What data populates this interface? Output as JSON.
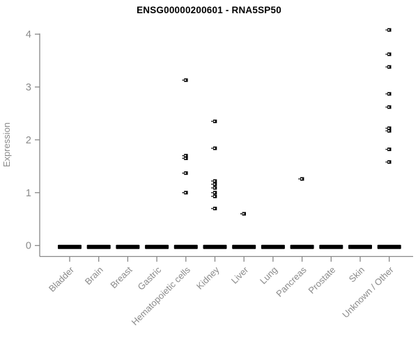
{
  "title": "ENSG00000200601 - RNA5SP50",
  "colors": {
    "background": "#ffffff",
    "title": "#000000",
    "axis_line": "#878787",
    "tick_label": "#8a8a8a",
    "axis_label": "#8a8a8a",
    "point": "#000000"
  },
  "chart_data": {
    "type": "scatter",
    "subtype": "strip-plot",
    "title": "ENSG00000200601 - RNA5SP50",
    "xlabel": "",
    "ylabel": "Expression",
    "ylim": [
      0,
      4
    ],
    "yticks": [
      0,
      1,
      2,
      3,
      4
    ],
    "grid": false,
    "legend": "none",
    "marker": "small-open-square",
    "categories": [
      "Bladder",
      "Brain",
      "Breast",
      "Gastric",
      "Hematopoietic cells",
      "Kidney",
      "Liver",
      "Lung",
      "Pancreas",
      "Prostate",
      "Skin",
      "Unknown / Other"
    ],
    "series": [
      {
        "name": "Bladder",
        "values_nonzero": [],
        "has_zero_cluster": true
      },
      {
        "name": "Brain",
        "values_nonzero": [],
        "has_zero_cluster": true
      },
      {
        "name": "Breast",
        "values_nonzero": [],
        "has_zero_cluster": true
      },
      {
        "name": "Gastric",
        "values_nonzero": [],
        "has_zero_cluster": true
      },
      {
        "name": "Hematopoietic cells",
        "values_nonzero": [
          3.13,
          1.7,
          1.65,
          1.37,
          1.0
        ],
        "has_zero_cluster": true
      },
      {
        "name": "Kidney",
        "values_nonzero": [
          2.35,
          1.84,
          1.22,
          1.16,
          1.09,
          1.0,
          0.93,
          0.7
        ],
        "has_zero_cluster": true
      },
      {
        "name": "Liver",
        "values_nonzero": [
          0.6
        ],
        "has_zero_cluster": true
      },
      {
        "name": "Lung",
        "values_nonzero": [],
        "has_zero_cluster": true
      },
      {
        "name": "Pancreas",
        "values_nonzero": [
          1.26
        ],
        "has_zero_cluster": true
      },
      {
        "name": "Prostate",
        "values_nonzero": [],
        "has_zero_cluster": true
      },
      {
        "name": "Skin",
        "values_nonzero": [],
        "has_zero_cluster": true
      },
      {
        "name": "Unknown / Other",
        "values_nonzero": [
          4.08,
          3.62,
          3.38,
          2.87,
          2.62,
          2.22,
          2.17,
          1.82,
          1.58
        ],
        "has_zero_cluster": true
      }
    ]
  }
}
